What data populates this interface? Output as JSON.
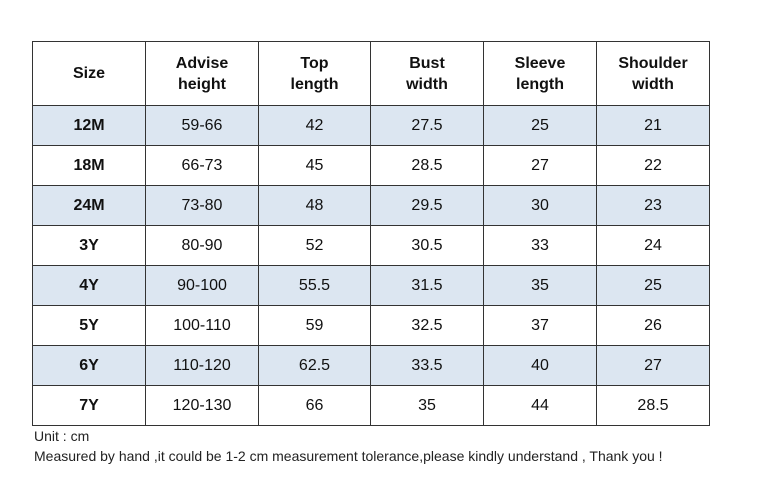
{
  "table": {
    "headers": [
      {
        "line1": "Size",
        "line2": ""
      },
      {
        "line1": "Advise",
        "line2": "height"
      },
      {
        "line1": "Top",
        "line2": "length"
      },
      {
        "line1": "Bust",
        "line2": "width"
      },
      {
        "line1": "Sleeve",
        "line2": "length"
      },
      {
        "line1": "Shoulder",
        "line2": "width"
      }
    ],
    "rows": [
      [
        "12M",
        "59-66",
        "42",
        "27.5",
        "25",
        "21"
      ],
      [
        "18M",
        "66-73",
        "45",
        "28.5",
        "27",
        "22"
      ],
      [
        "24M",
        "73-80",
        "48",
        "29.5",
        "30",
        "23"
      ],
      [
        "3Y",
        "80-90",
        "52",
        "30.5",
        "33",
        "24"
      ],
      [
        "4Y",
        "90-100",
        "55.5",
        "31.5",
        "35",
        "25"
      ],
      [
        "5Y",
        "100-110",
        "59",
        "32.5",
        "37",
        "26"
      ],
      [
        "6Y",
        "110-120",
        "62.5",
        "33.5",
        "40",
        "27"
      ],
      [
        "7Y",
        "120-130",
        "66",
        "35",
        "44",
        "28.5"
      ]
    ],
    "shaded_row_color": "#dce6f1",
    "border_color": "#333333"
  },
  "notes": {
    "unit": "Unit : cm",
    "disclaimer": "Measured by hand ,it could be 1-2 cm measurement tolerance,please kindly understand , Thank you !"
  }
}
